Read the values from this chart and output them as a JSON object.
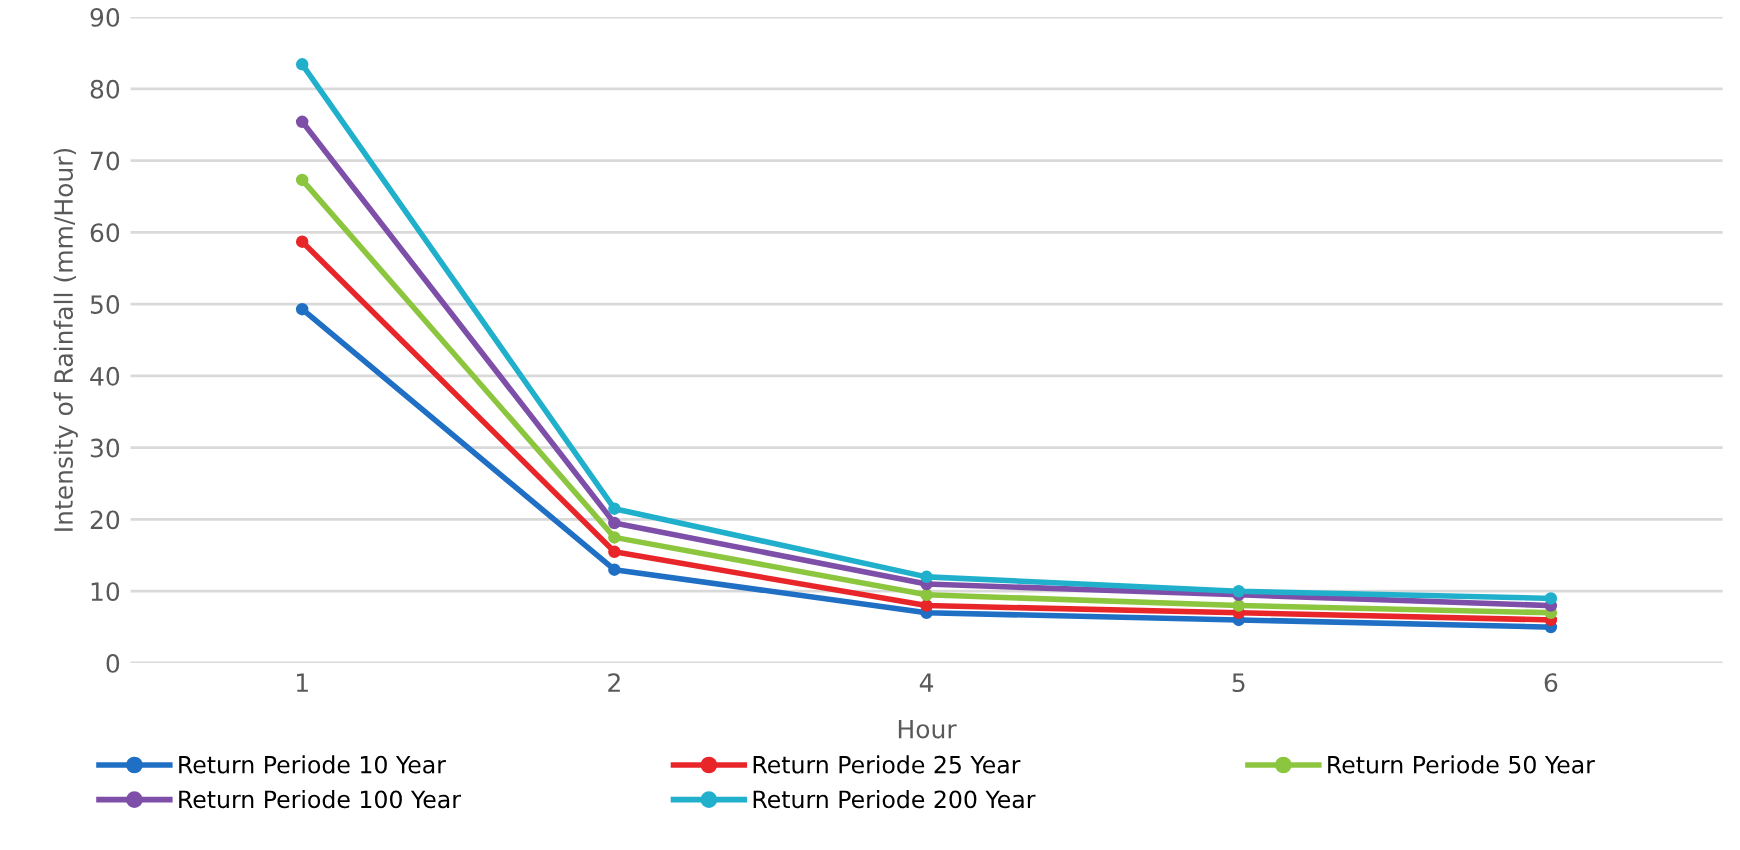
{
  "chart_data": {
    "type": "line",
    "xlabel": "Hour",
    "ylabel": "Intensity of Rainfall (mm/Hour)",
    "categories": [
      "1",
      "2",
      "4",
      "5",
      "6"
    ],
    "ylim": [
      0,
      90
    ],
    "yticks": [
      0,
      10,
      20,
      30,
      40,
      50,
      60,
      70,
      80,
      90
    ],
    "grid": "y",
    "legend": "bottom",
    "marker": "circle",
    "line_style": "solid",
    "series": [
      {
        "name": "Return Periode 10 Year",
        "color": "#1f6fc5",
        "values": [
          49.3,
          13,
          7,
          6,
          5
        ]
      },
      {
        "name": "Return Periode 25 Year",
        "color": "#e8262a",
        "values": [
          58.7,
          15.5,
          8,
          7,
          6
        ]
      },
      {
        "name": "Return Periode 50 Year",
        "color": "#8cc63f",
        "values": [
          67.3,
          17.5,
          9.5,
          8,
          7
        ]
      },
      {
        "name": "Return Periode 100 Year",
        "color": "#7e4fa8",
        "values": [
          75.4,
          19.5,
          11,
          9.5,
          8
        ]
      },
      {
        "name": "Return Periode 200 Year",
        "color": "#21b0cc",
        "values": [
          83.4,
          21.5,
          12,
          10,
          9
        ]
      }
    ]
  }
}
